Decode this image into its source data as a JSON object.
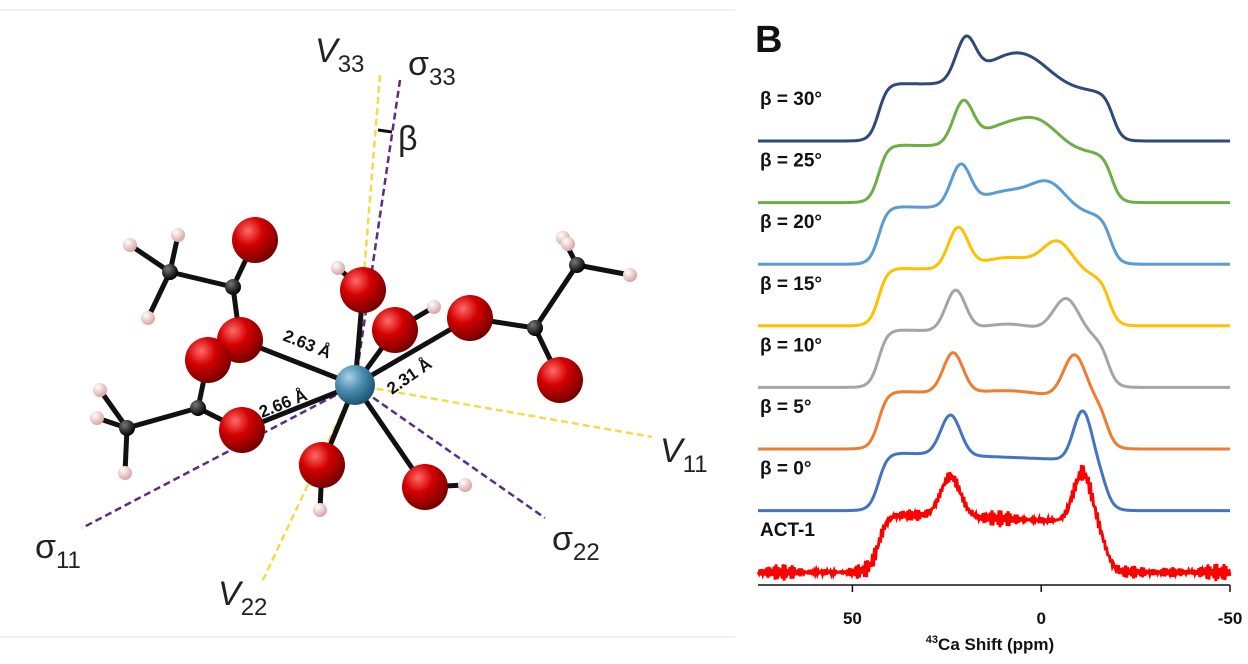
{
  "panel_a": {
    "axes": [
      {
        "symbol": "V",
        "sub": "33"
      },
      {
        "symbol": "σ",
        "sub": "33"
      },
      {
        "symbol": "V",
        "sub": "11"
      },
      {
        "symbol": "V",
        "sub": "22"
      },
      {
        "symbol": "σ",
        "sub": "11"
      },
      {
        "symbol": "σ",
        "sub": "22"
      }
    ],
    "angle": "β",
    "bonds": [
      "2.63 Å",
      "2.66 Å",
      "2.31 Å"
    ]
  },
  "panel_b": {
    "label": "B",
    "traces": [
      {
        "name": "β = 30°",
        "color": "#2e4a7a"
      },
      {
        "name": "β = 25°",
        "color": "#6fae45"
      },
      {
        "name": "β = 20°",
        "color": "#5b9bd5"
      },
      {
        "name": "β = 15°",
        "color": "#ffc000"
      },
      {
        "name": "β = 10°",
        "color": "#a5a5a5"
      },
      {
        "name": "β = 5°",
        "color": "#ed7d31"
      },
      {
        "name": "β = 0°",
        "color": "#4472c4"
      },
      {
        "name": "ACT-1",
        "color": "#ff0000"
      }
    ],
    "x_axis": {
      "xlim": [
        75,
        -50
      ],
      "xticks": [
        50,
        0,
        -50
      ],
      "label_sup": "43",
      "label": "Ca Shift (ppm)"
    }
  }
}
